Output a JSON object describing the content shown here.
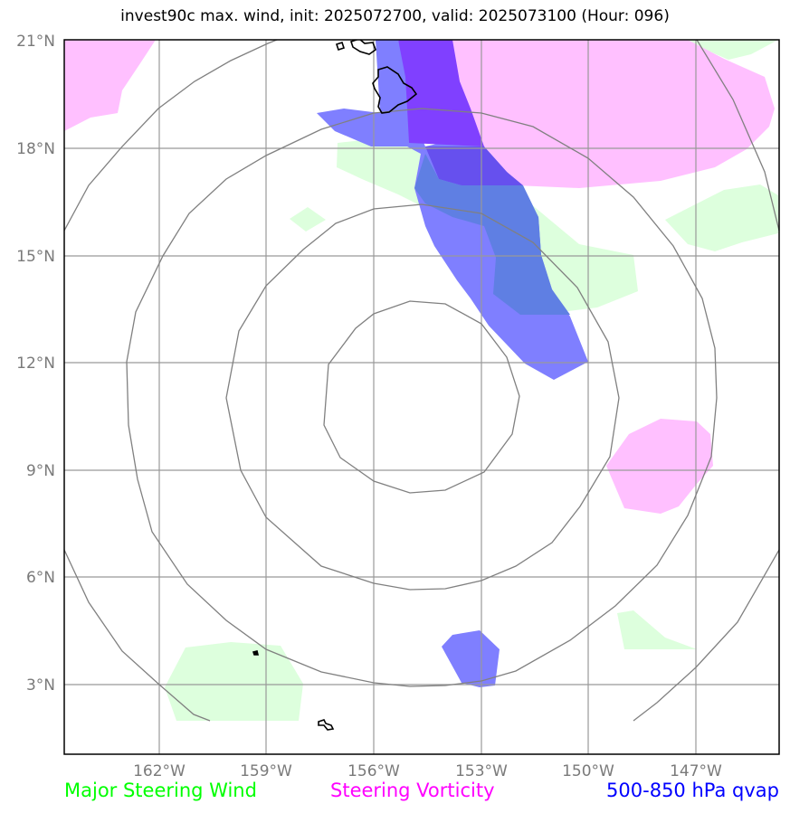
{
  "title": "invest90c max. wind, init: 2025072700, valid: 2025073100 (Hour: 096)",
  "lat_labels": [
    "21°N",
    "18°N",
    "15°N",
    "12°N",
    "9°N",
    "6°N",
    "3°N"
  ],
  "lon_labels": [
    "162°W",
    "159°W",
    "156°W",
    "153°W",
    "150°W",
    "147°W"
  ],
  "legend": {
    "green": "Major Steering Wind",
    "magenta": "Steering Vorticity",
    "blue": "500-850 hPa qvap"
  },
  "colors": {
    "green_text": "#00ff00",
    "magenta_text": "#ff00ff",
    "blue_text": "#0000ff",
    "green_fill": "#ddffdd",
    "magenta_fill": "#ffc0ff",
    "blue_fill": "#7f7fff",
    "grid": "#999999",
    "rings": "#808080"
  }
}
